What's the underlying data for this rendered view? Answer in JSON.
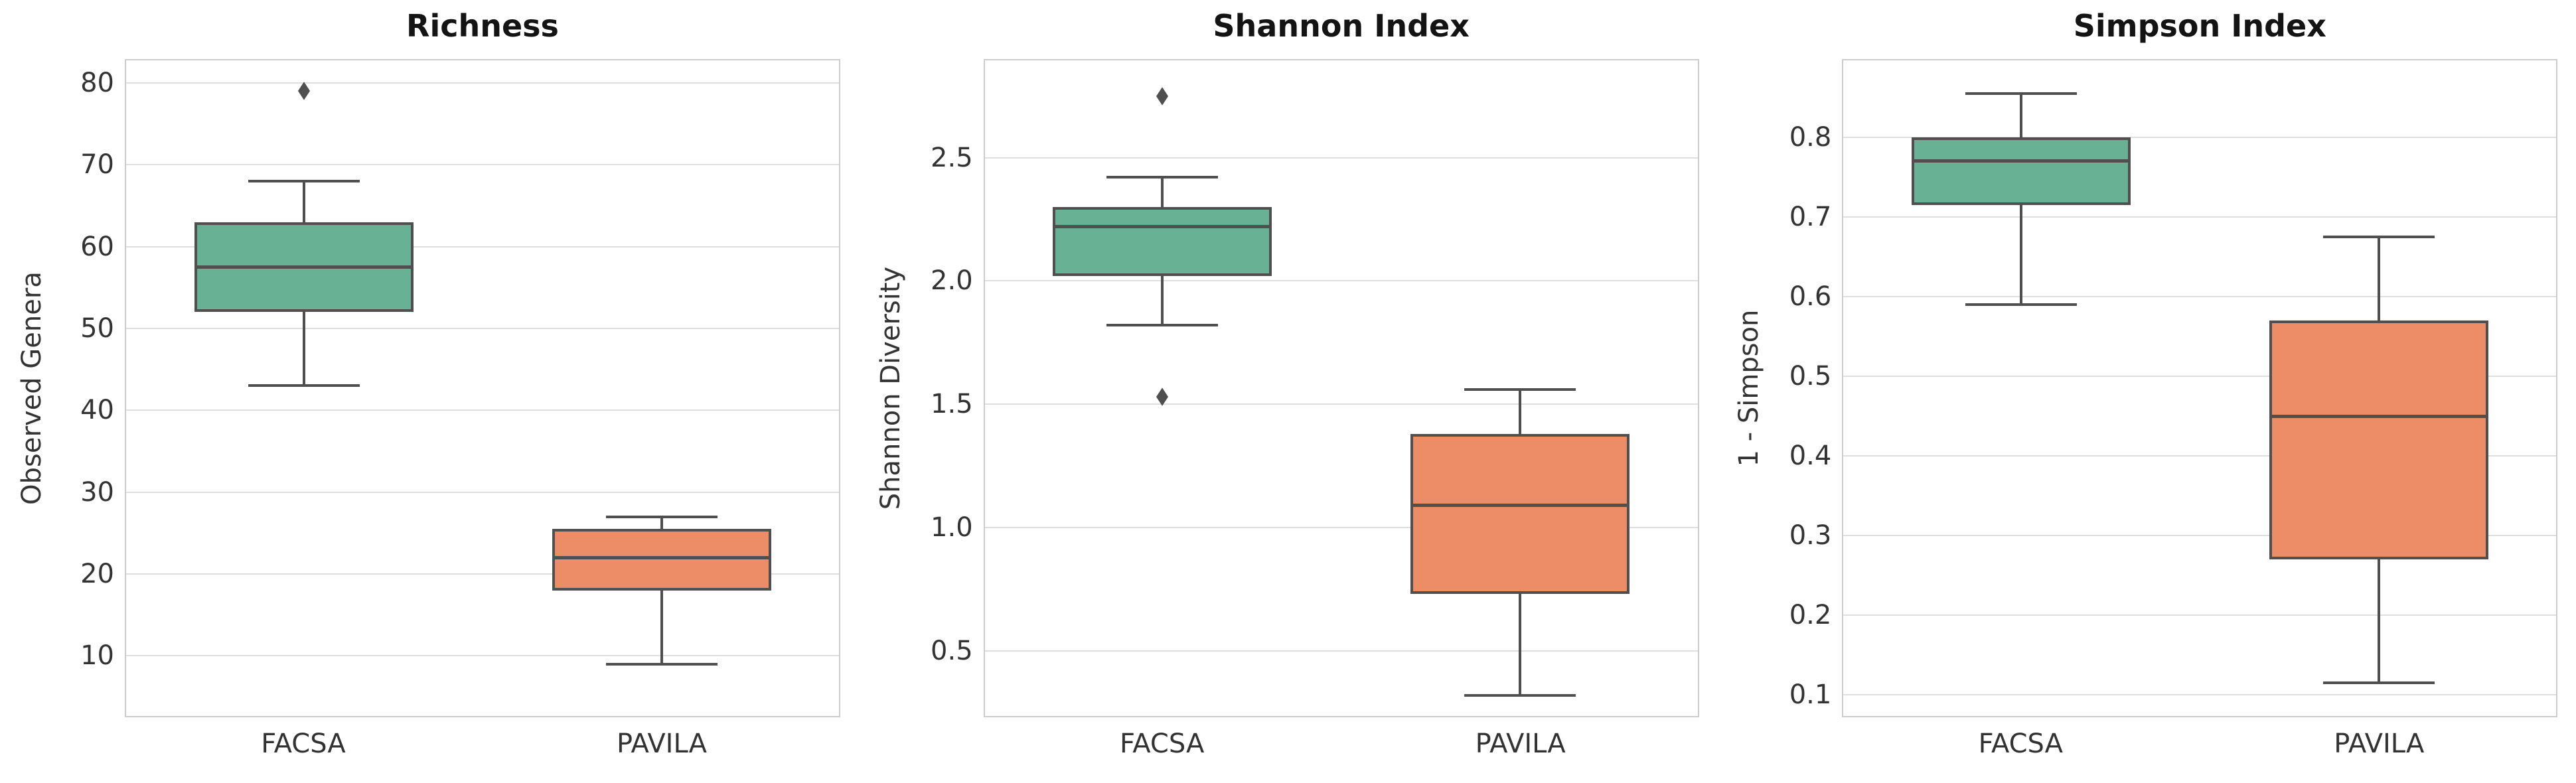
{
  "figure": {
    "background": "#ffffff",
    "grid_color": "#dfdfdf",
    "spine_color": "#cccccc",
    "line_color": "#4f4f4f",
    "tick_text_color": "#333333",
    "title_color": "#141414",
    "facsa_color": "#68b195",
    "pavila_color": "#ec8d68"
  },
  "chart_data": [
    {
      "type": "box",
      "title": "Richness",
      "ylabel": "Observed Genera",
      "xlabel": "",
      "categories": [
        "FACSA",
        "PAVILA"
      ],
      "yticks": [
        10,
        20,
        30,
        40,
        50,
        60,
        70,
        80
      ],
      "ytick_labels": [
        "10",
        "20",
        "30",
        "40",
        "50",
        "60",
        "70",
        "80"
      ],
      "ylim": [
        2.5,
        82.9
      ],
      "grid": true,
      "legend": "none",
      "series": [
        {
          "name": "FACSA",
          "color": "#68b195",
          "whisker_low": 43,
          "q1": 52,
          "median": 57.5,
          "q3": 63,
          "whisker_high": 68,
          "outliers": [
            79
          ]
        },
        {
          "name": "PAVILA",
          "color": "#ec8d68",
          "whisker_low": 9,
          "q1": 18,
          "median": 22,
          "q3": 25.5,
          "whisker_high": 27,
          "outliers": []
        }
      ]
    },
    {
      "type": "box",
      "title": "Shannon Index",
      "ylabel": "Shannon Diversity",
      "xlabel": "",
      "categories": [
        "FACSA",
        "PAVILA"
      ],
      "yticks": [
        0.5,
        1.0,
        1.5,
        2.0,
        2.5
      ],
      "ytick_labels": [
        "0.5",
        "1.0",
        "1.5",
        "2.0",
        "2.5"
      ],
      "ylim": [
        0.23,
        2.9
      ],
      "grid": true,
      "legend": "none",
      "series": [
        {
          "name": "FACSA",
          "color": "#68b195",
          "whisker_low": 1.82,
          "q1": 2.02,
          "median": 2.22,
          "q3": 2.3,
          "whisker_high": 2.42,
          "outliers": [
            2.75,
            1.53
          ]
        },
        {
          "name": "PAVILA",
          "color": "#ec8d68",
          "whisker_low": 0.32,
          "q1": 0.73,
          "median": 1.09,
          "q3": 1.38,
          "whisker_high": 1.56,
          "outliers": []
        }
      ]
    },
    {
      "type": "box",
      "title": "Simpson Index",
      "ylabel": "1 - Simpson",
      "xlabel": "",
      "categories": [
        "FACSA",
        "PAVILA"
      ],
      "yticks": [
        0.1,
        0.2,
        0.3,
        0.4,
        0.5,
        0.6,
        0.7,
        0.8
      ],
      "ytick_labels": [
        "0.1",
        "0.2",
        "0.3",
        "0.4",
        "0.5",
        "0.6",
        "0.7",
        "0.8"
      ],
      "ylim": [
        0.072,
        0.898
      ],
      "grid": true,
      "legend": "none",
      "series": [
        {
          "name": "FACSA",
          "color": "#68b195",
          "whisker_low": 0.59,
          "q1": 0.715,
          "median": 0.77,
          "q3": 0.8,
          "whisker_high": 0.855,
          "outliers": []
        },
        {
          "name": "PAVILA",
          "color": "#ec8d68",
          "whisker_low": 0.115,
          "q1": 0.27,
          "median": 0.45,
          "q3": 0.57,
          "whisker_high": 0.675,
          "outliers": []
        }
      ]
    }
  ]
}
